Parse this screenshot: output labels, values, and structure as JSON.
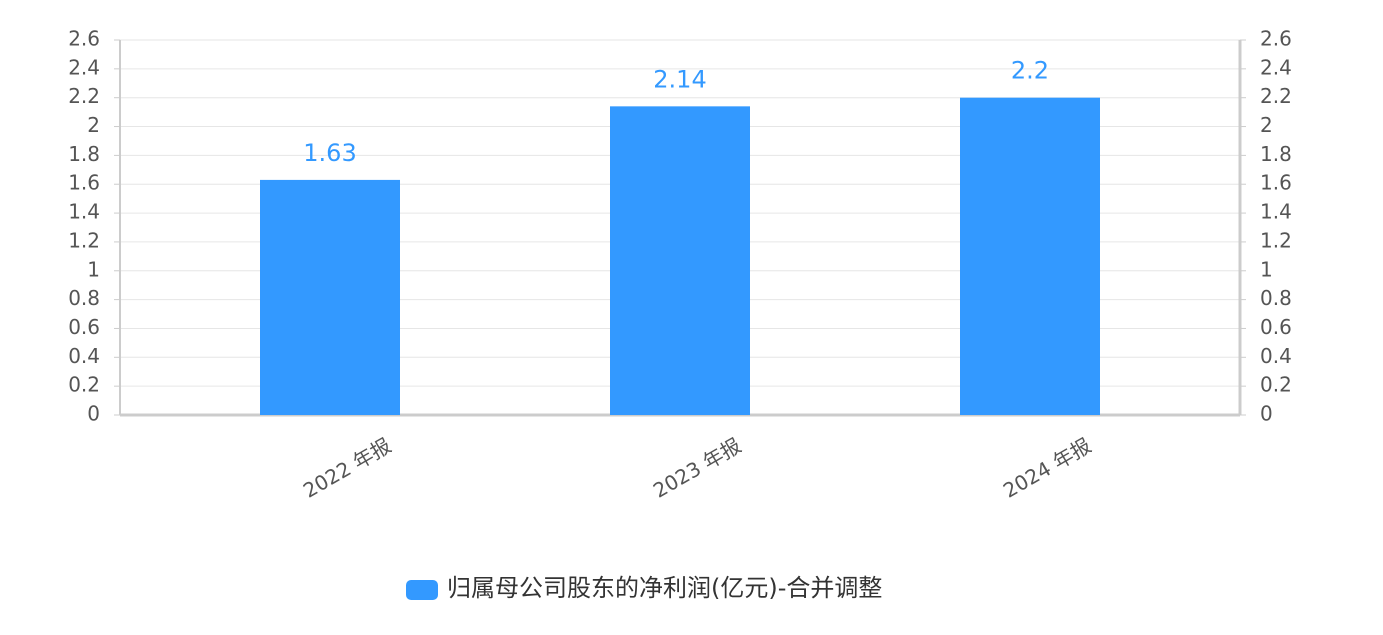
{
  "chart_data": {
    "type": "bar",
    "categories": [
      "2022 年报",
      "2023 年报",
      "2024 年报"
    ],
    "series": [
      {
        "name": "归属母公司股东的净利润(亿元)-合并调整",
        "color": "#3399ff",
        "values": [
          1.63,
          2.14,
          2.2
        ]
      }
    ],
    "ylim": [
      0,
      2.6
    ],
    "yticks": [
      0,
      0.2,
      0.4,
      0.6,
      0.8,
      1,
      1.2,
      1.4,
      1.6,
      1.8,
      2,
      2.2,
      2.4,
      2.6
    ],
    "y2lim": [
      0,
      2.6
    ],
    "y2ticks": [
      0,
      0.2,
      0.4,
      0.6,
      0.8,
      1,
      1.2,
      1.4,
      1.6,
      1.8,
      2,
      2.2,
      2.4,
      2.6
    ],
    "grid": true
  }
}
